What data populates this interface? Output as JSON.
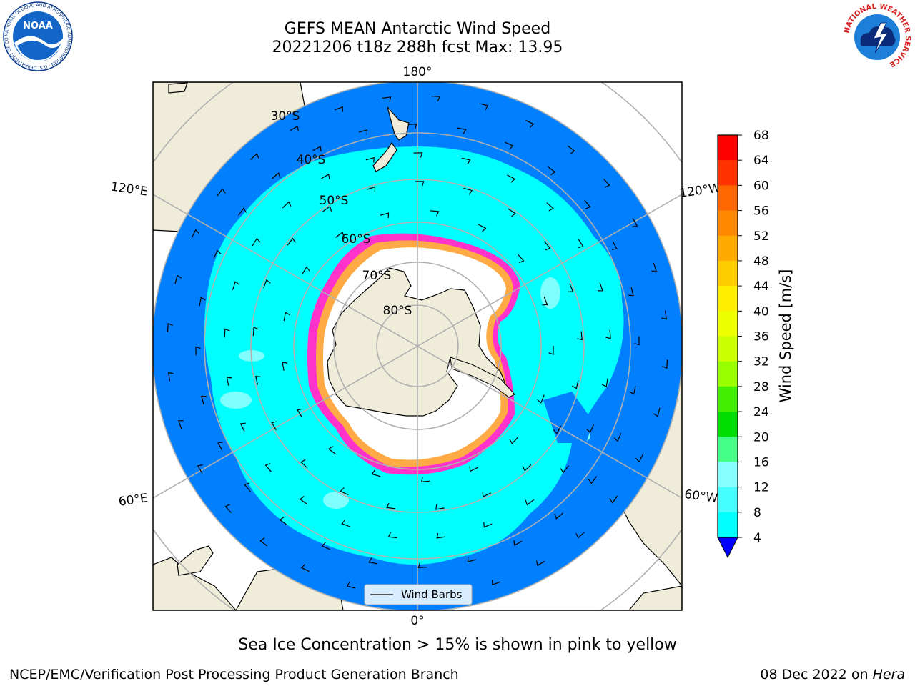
{
  "title": {
    "line1": "GEFS MEAN Antarctic Wind Speed",
    "line2": "20221206 t18z 288h fcst   Max: 13.95"
  },
  "map": {
    "projection": "south-polar-stereographic",
    "longitude_labels": [
      "180°",
      "120°E",
      "120°W",
      "60°E",
      "60°W",
      "0°"
    ],
    "latitude_labels": [
      "30°S",
      "40°S",
      "50°S",
      "60°S",
      "70°S",
      "80°S"
    ],
    "legend_label": "Wind Barbs",
    "colors": {
      "land": "#efecd9",
      "sea_ice": "#ffffff",
      "wind_4_8": "#0080ff",
      "wind_8_12": "#00ffff",
      "wind_12_16": "#80ffff",
      "ice_edge_pink": "#ff33cc",
      "ice_edge_orange": "#ffaa44",
      "grid": "#b0b0b0"
    }
  },
  "colorbar": {
    "label": "Wind Speed [m/s]",
    "ticks": [
      "68",
      "64",
      "60",
      "56",
      "52",
      "48",
      "44",
      "40",
      "36",
      "32",
      "28",
      "24",
      "20",
      "16",
      "12",
      "8",
      "4"
    ],
    "colors": [
      "#ff0000",
      "#ff3300",
      "#ff6600",
      "#ff8800",
      "#ffaa00",
      "#ffcc00",
      "#ffee00",
      "#eeff00",
      "#ccff00",
      "#99ff00",
      "#44ee00",
      "#00dd00",
      "#44ff88",
      "#88ffff",
      "#44ffff",
      "#00ffff",
      "#0080ff"
    ],
    "extend_color": "#0000ff"
  },
  "caption": "Sea Ice Concentration > 15% is shown in pink to yellow",
  "footer": {
    "credit": "NCEP/EMC/Verification Post Processing Product Generation Branch",
    "date": "08 Dec 2022 on",
    "host": "Hera"
  },
  "logos": {
    "noaa_text": "NOAA",
    "noaa_ring": "NATIONAL OCEANIC AND ATMOSPHERIC ADMINISTRATION · U.S. DEPARTMENT OF COMMERCE",
    "nws_ring": "NATIONAL WEATHER SERVICE"
  }
}
